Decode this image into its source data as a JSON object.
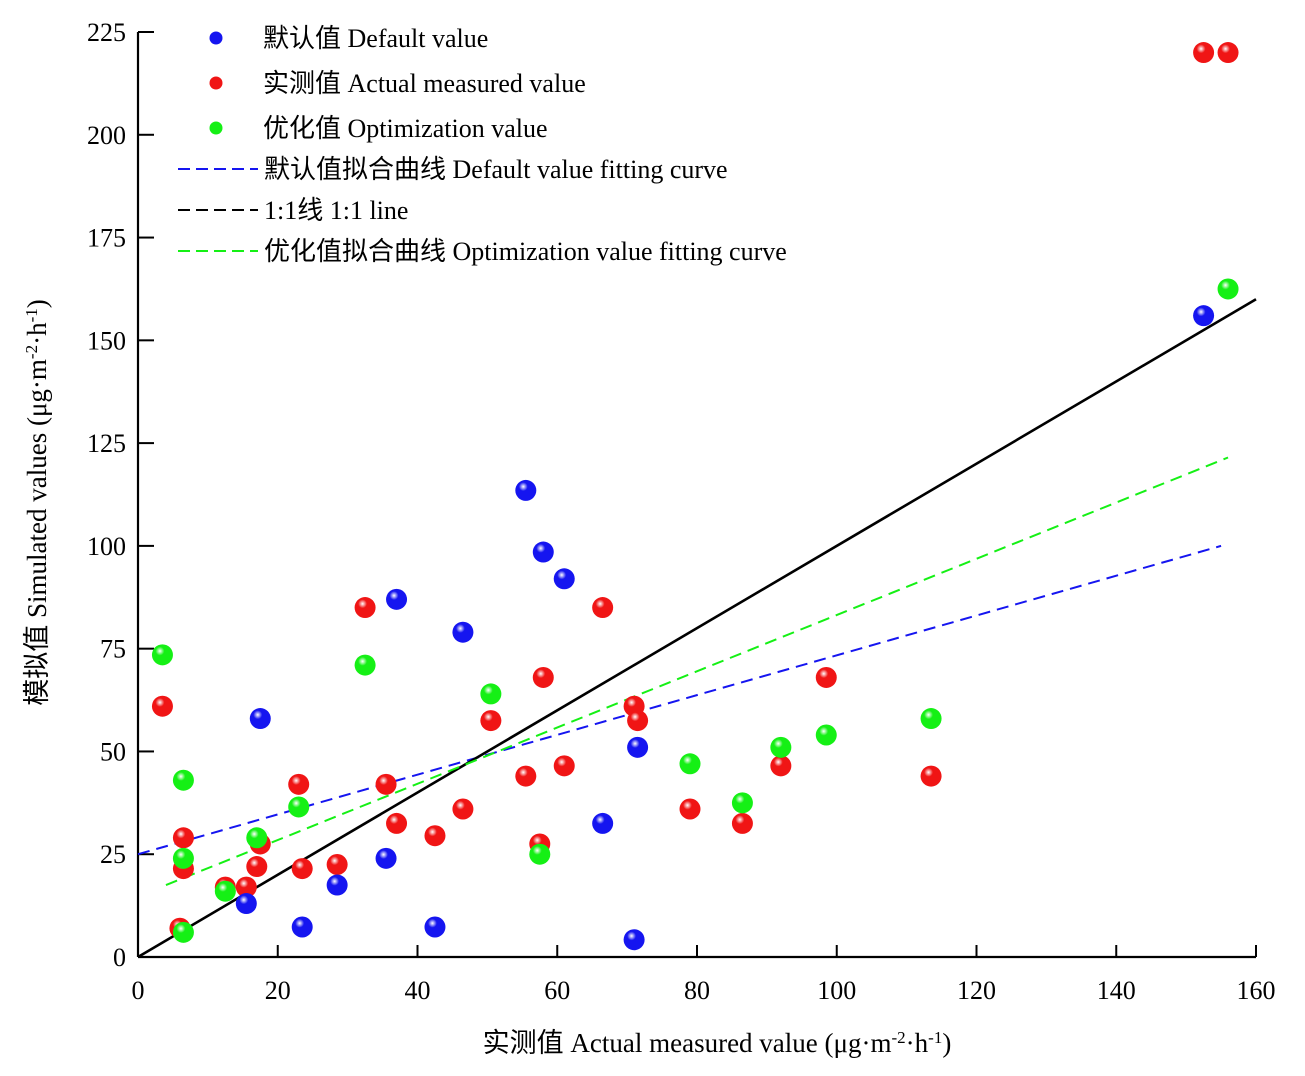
{
  "chart_data": {
    "type": "scatter",
    "title": "",
    "xlabel": "实测值 Actual measured value (μg·m⁻²·h⁻¹)",
    "ylabel": "模拟值 Simulated values (μg·m⁻²·h⁻¹)",
    "xlabel_parts": {
      "pre": "实测值 Actual measured value (μg·m",
      "sup1": "-2",
      "mid": "·h",
      "sup2": "-1",
      "post": ")"
    },
    "ylabel_parts": {
      "pre": "模拟值 Simulated values (μg·m",
      "sup1": "-2",
      "mid": "·h",
      "sup2": "-1",
      "post": ")"
    },
    "xlim": [
      0,
      160
    ],
    "ylim": [
      0,
      225
    ],
    "x_ticks": [
      0,
      20,
      40,
      60,
      80,
      100,
      120,
      140,
      160
    ],
    "y_ticks": [
      0,
      25,
      50,
      75,
      100,
      125,
      150,
      175,
      200,
      225
    ],
    "grid": false,
    "legend_position": "top-left",
    "series": [
      {
        "name": "默认值 Default value",
        "kind": "points",
        "color": "#1515f0",
        "points": [
          [
            15.5,
            13
          ],
          [
            17.5,
            58
          ],
          [
            23.5,
            7.3
          ],
          [
            28.5,
            17.5
          ],
          [
            35.5,
            24
          ],
          [
            37,
            87
          ],
          [
            42.5,
            7.3
          ],
          [
            46.5,
            79
          ],
          [
            55.5,
            113.5
          ],
          [
            58,
            98.5
          ],
          [
            61,
            92
          ],
          [
            66.5,
            32.5
          ],
          [
            71,
            4.2
          ],
          [
            71.5,
            51
          ],
          [
            152.5,
            156
          ]
        ]
      },
      {
        "name": "实测值 Actual measured value",
        "kind": "points",
        "color": "#f01515",
        "points": [
          [
            3.5,
            61
          ],
          [
            6.5,
            29
          ],
          [
            6.5,
            21.5
          ],
          [
            6,
            7
          ],
          [
            12.5,
            17
          ],
          [
            15.5,
            17
          ],
          [
            17,
            22
          ],
          [
            17.5,
            27.5
          ],
          [
            23,
            42
          ],
          [
            23.5,
            21.5
          ],
          [
            28.5,
            22.5
          ],
          [
            32.5,
            85
          ],
          [
            35.5,
            42
          ],
          [
            37,
            32.5
          ],
          [
            42.5,
            29.5
          ],
          [
            46.5,
            36
          ],
          [
            50.5,
            57.5
          ],
          [
            55.5,
            44
          ],
          [
            57.5,
            27.5
          ],
          [
            58,
            68
          ],
          [
            61,
            46.5
          ],
          [
            66.5,
            85
          ],
          [
            71,
            61
          ],
          [
            71.5,
            57.5
          ],
          [
            79,
            36
          ],
          [
            86.5,
            32.5
          ],
          [
            92,
            46.5
          ],
          [
            98.5,
            68
          ],
          [
            113.5,
            44
          ],
          [
            152.5,
            220
          ],
          [
            156,
            220
          ]
        ]
      },
      {
        "name": "优化值 Optimization value",
        "kind": "points",
        "color": "#15f015",
        "points": [
          [
            3.5,
            73.5
          ],
          [
            6.5,
            43
          ],
          [
            6.5,
            24
          ],
          [
            6.5,
            6
          ],
          [
            12.5,
            16
          ],
          [
            17,
            29
          ],
          [
            23,
            36.5
          ],
          [
            32.5,
            71
          ],
          [
            50.5,
            64
          ],
          [
            57.5,
            25
          ],
          [
            79,
            47
          ],
          [
            86.5,
            37.5
          ],
          [
            92,
            51
          ],
          [
            98.5,
            54
          ],
          [
            113.5,
            58
          ],
          [
            156,
            162.5
          ]
        ]
      },
      {
        "name": "默认值拟合曲线 Default value fitting curve",
        "kind": "line",
        "style": "dashed",
        "color": "#1515f0",
        "points": [
          [
            0,
            25
          ],
          [
            155,
            100
          ]
        ]
      },
      {
        "name": "1:1线 1:1 line",
        "kind": "line",
        "style": "solid",
        "legend_style": "dashed",
        "color": "#000000",
        "points": [
          [
            0,
            0
          ],
          [
            160,
            160
          ]
        ]
      },
      {
        "name": "优化值拟合曲线 Optimization value fitting curve",
        "kind": "line",
        "style": "dashed",
        "color": "#15f015",
        "points": [
          [
            4,
            17.5
          ],
          [
            156,
            121.5
          ]
        ]
      }
    ]
  }
}
